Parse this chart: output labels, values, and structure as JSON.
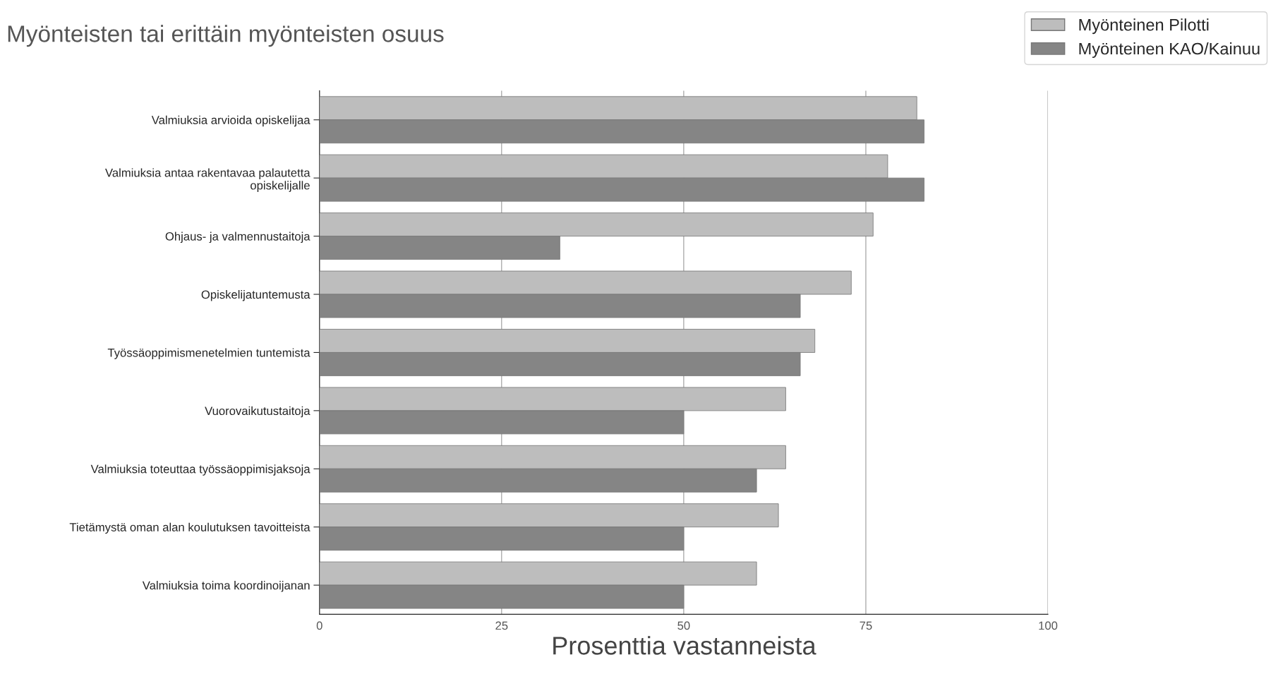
{
  "chart_data": {
    "type": "bar",
    "orientation": "horizontal",
    "title": "Myönteisten tai erittäin myönteisten osuus",
    "xlabel": "Prosenttia vastanneista",
    "categories": [
      "Valmiuksia arvioida opiskelijaa",
      "Valmiuksia antaa rakentavaa palautetta\nopiskelijalle",
      "Ohjaus- ja valmennustaitoja",
      "Opiskelijatuntemusta",
      "Työssäoppimismenetelmien tuntemista",
      "Vuorovaikutustaitoja",
      "Valmiuksia toteuttaa työssäoppimisjaksoja",
      "Tietämystä oman alan koulutuksen tavoitteista",
      "Valmiuksia toima koordinoijanan"
    ],
    "series": [
      {
        "name": "Myönteinen Pilotti",
        "color": "#bdbdbd",
        "values": [
          82,
          78,
          76,
          73,
          68,
          64,
          64,
          63,
          60
        ]
      },
      {
        "name": "Myönteinen KAO/Kainuu",
        "color": "#858585",
        "values": [
          83,
          83,
          33,
          66,
          66,
          50,
          60,
          50,
          50
        ]
      }
    ],
    "xlim": [
      0,
      100
    ],
    "xticks": [
      0,
      25,
      50,
      75,
      100
    ],
    "grid": "x",
    "legend": "top right"
  }
}
